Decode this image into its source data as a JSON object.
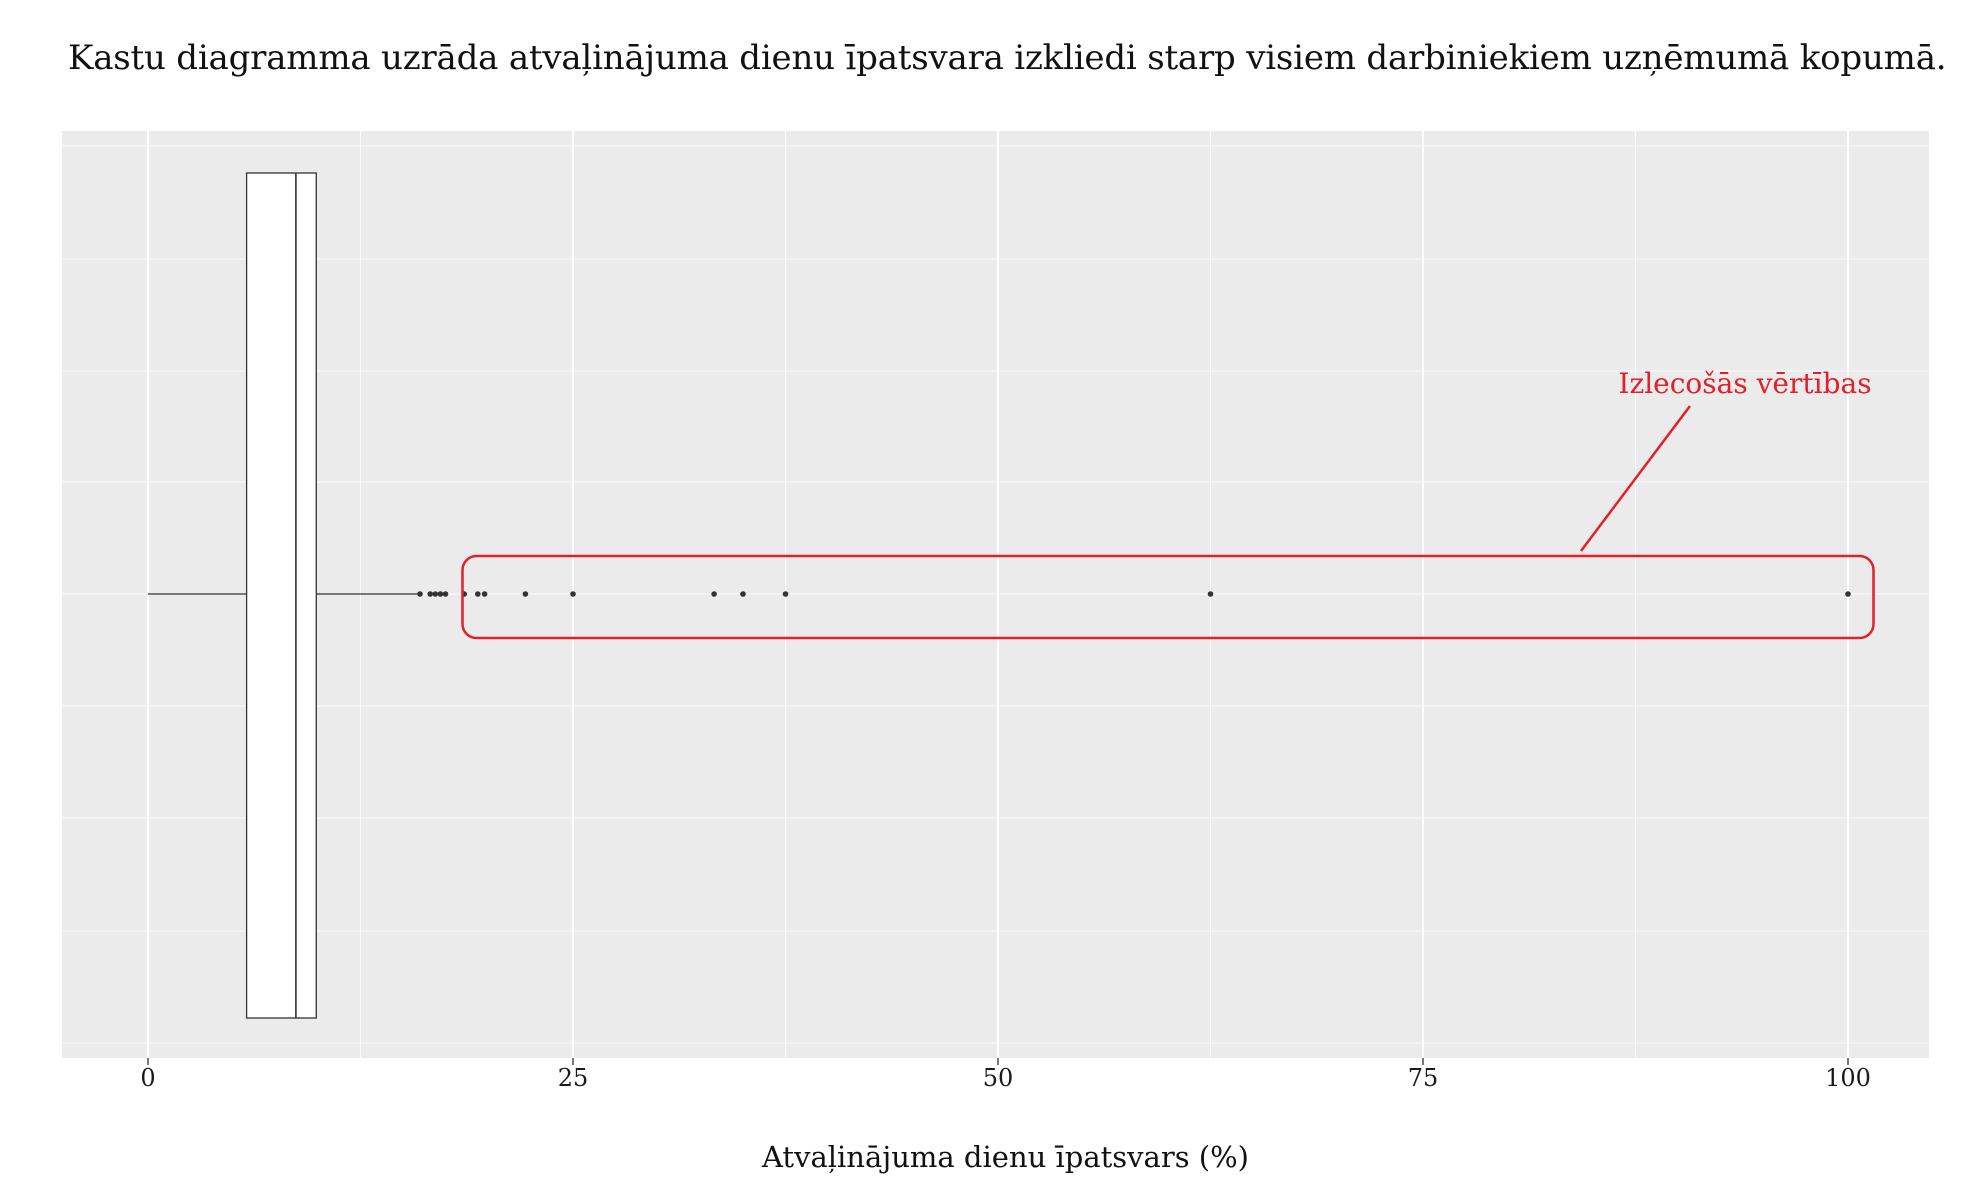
{
  "page": {
    "title": "Kastu diagramma uzrāda atvaļinājuma dienu īpatsvara izkliedi starp visiem darbiniekiem uzņēmumā kopumā."
  },
  "colors": {
    "panel_background": "#ebebeb",
    "grid": "#ffffff",
    "box_fill": "#ffffff",
    "box_stroke": "#333333",
    "outlier": "#333333",
    "annotation": "#e0202a"
  },
  "chart_data": {
    "type": "boxplot",
    "orientation": "horizontal",
    "title": "",
    "xlabel": "Atvaļinājuma dienu īpatsvars (%)",
    "ylabel": "",
    "xlim": [
      -5,
      105
    ],
    "x_ticks": [
      0,
      25,
      50,
      75,
      100
    ],
    "x_tick_labels": [
      "0",
      "25",
      "50",
      "75",
      "100"
    ],
    "grid": true,
    "box": {
      "whisker_low": 0,
      "q1": 5.8,
      "median": 8.7,
      "q3": 9.9,
      "whisker_high": 15.9
    },
    "outliers": [
      16.0,
      16.6,
      16.9,
      17.2,
      17.5,
      18.6,
      19.4,
      19.8,
      22.2,
      25.0,
      33.3,
      35.0,
      37.5,
      62.5,
      100.0
    ],
    "annotation": {
      "label": "Izlecošās vērtības",
      "x_range": [
        18.5,
        101.5
      ]
    }
  }
}
